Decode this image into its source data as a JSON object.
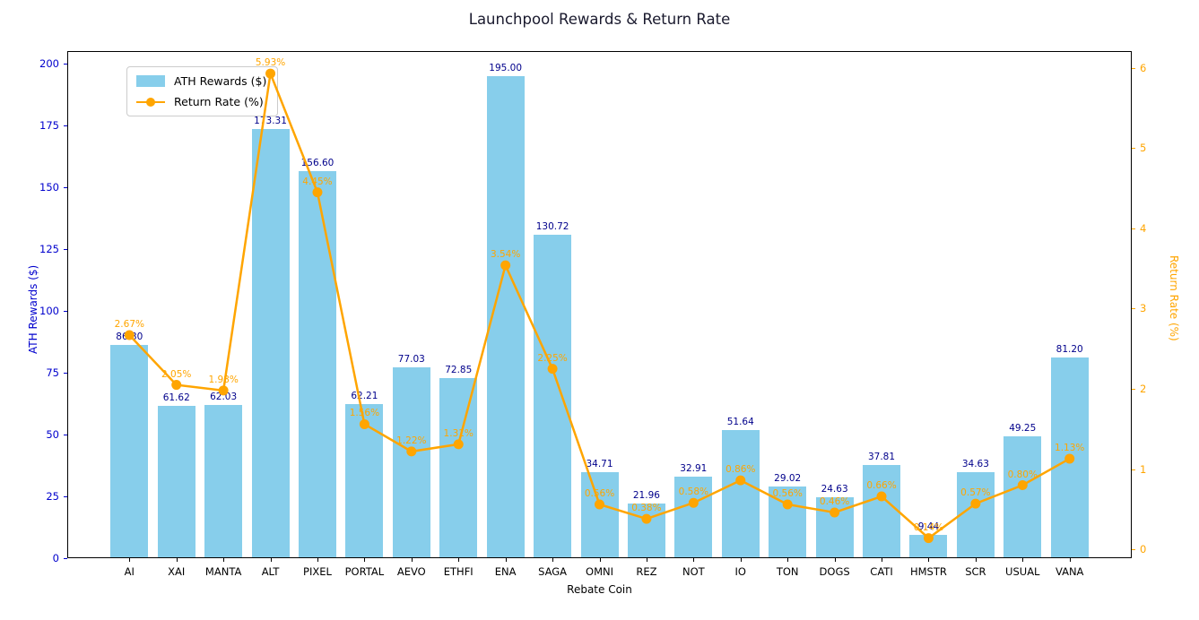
{
  "title": "Launchpool Rewards & Return Rate",
  "legend": {
    "bar_label": "ATH Rewards ($)",
    "line_label": "Return Rate (%)"
  },
  "colors": {
    "bar": "#87CEEB",
    "line": "#FFA500",
    "bar_value_label": "#00008B",
    "left_axis_text": "#0000CD",
    "right_axis_text": "#FFA500",
    "xtick_text": "#000000"
  },
  "chart_data": {
    "type": "bar",
    "categories": [
      "AI",
      "XAI",
      "MANTA",
      "ALT",
      "PIXEL",
      "PORTAL",
      "AEVO",
      "ETHFI",
      "ENA",
      "SAGA",
      "OMNI",
      "REZ",
      "NOT",
      "IO",
      "TON",
      "DOGS",
      "CATI",
      "HMSTR",
      "SCR",
      "USUAL",
      "VANA"
    ],
    "series": [
      {
        "name": "ATH Rewards ($)",
        "type": "bar",
        "axis": "left",
        "values": [
          86.3,
          61.62,
          62.03,
          173.31,
          156.6,
          62.21,
          77.03,
          72.85,
          195.0,
          130.72,
          34.71,
          21.96,
          32.91,
          51.64,
          29.02,
          24.63,
          37.81,
          9.44,
          34.63,
          49.25,
          81.2
        ]
      },
      {
        "name": "Return Rate (%)",
        "type": "line",
        "axis": "right",
        "values": [
          2.67,
          2.05,
          1.98,
          5.93,
          4.45,
          1.56,
          1.22,
          1.31,
          3.54,
          2.25,
          0.56,
          0.38,
          0.58,
          0.86,
          0.56,
          0.46,
          0.66,
          0.14,
          0.57,
          0.8,
          1.13
        ]
      }
    ],
    "title": "Launchpool Rewards & Return Rate",
    "xlabel": "Rebate Coin",
    "ylabel_left": "ATH Rewards ($)",
    "ylabel_right": "Return Rate (%)",
    "ylim_left": [
      0,
      205
    ],
    "ylim_right": [
      -0.11,
      6.21
    ],
    "yticks_left": [
      0,
      25,
      50,
      75,
      100,
      125,
      150,
      175,
      200
    ],
    "yticks_right": [
      0,
      1,
      2,
      3,
      4,
      5,
      6
    ],
    "grid": false,
    "legend_position": "upper-left",
    "bar_value_label_decimals": 2,
    "line_value_label_suffix": "%"
  }
}
